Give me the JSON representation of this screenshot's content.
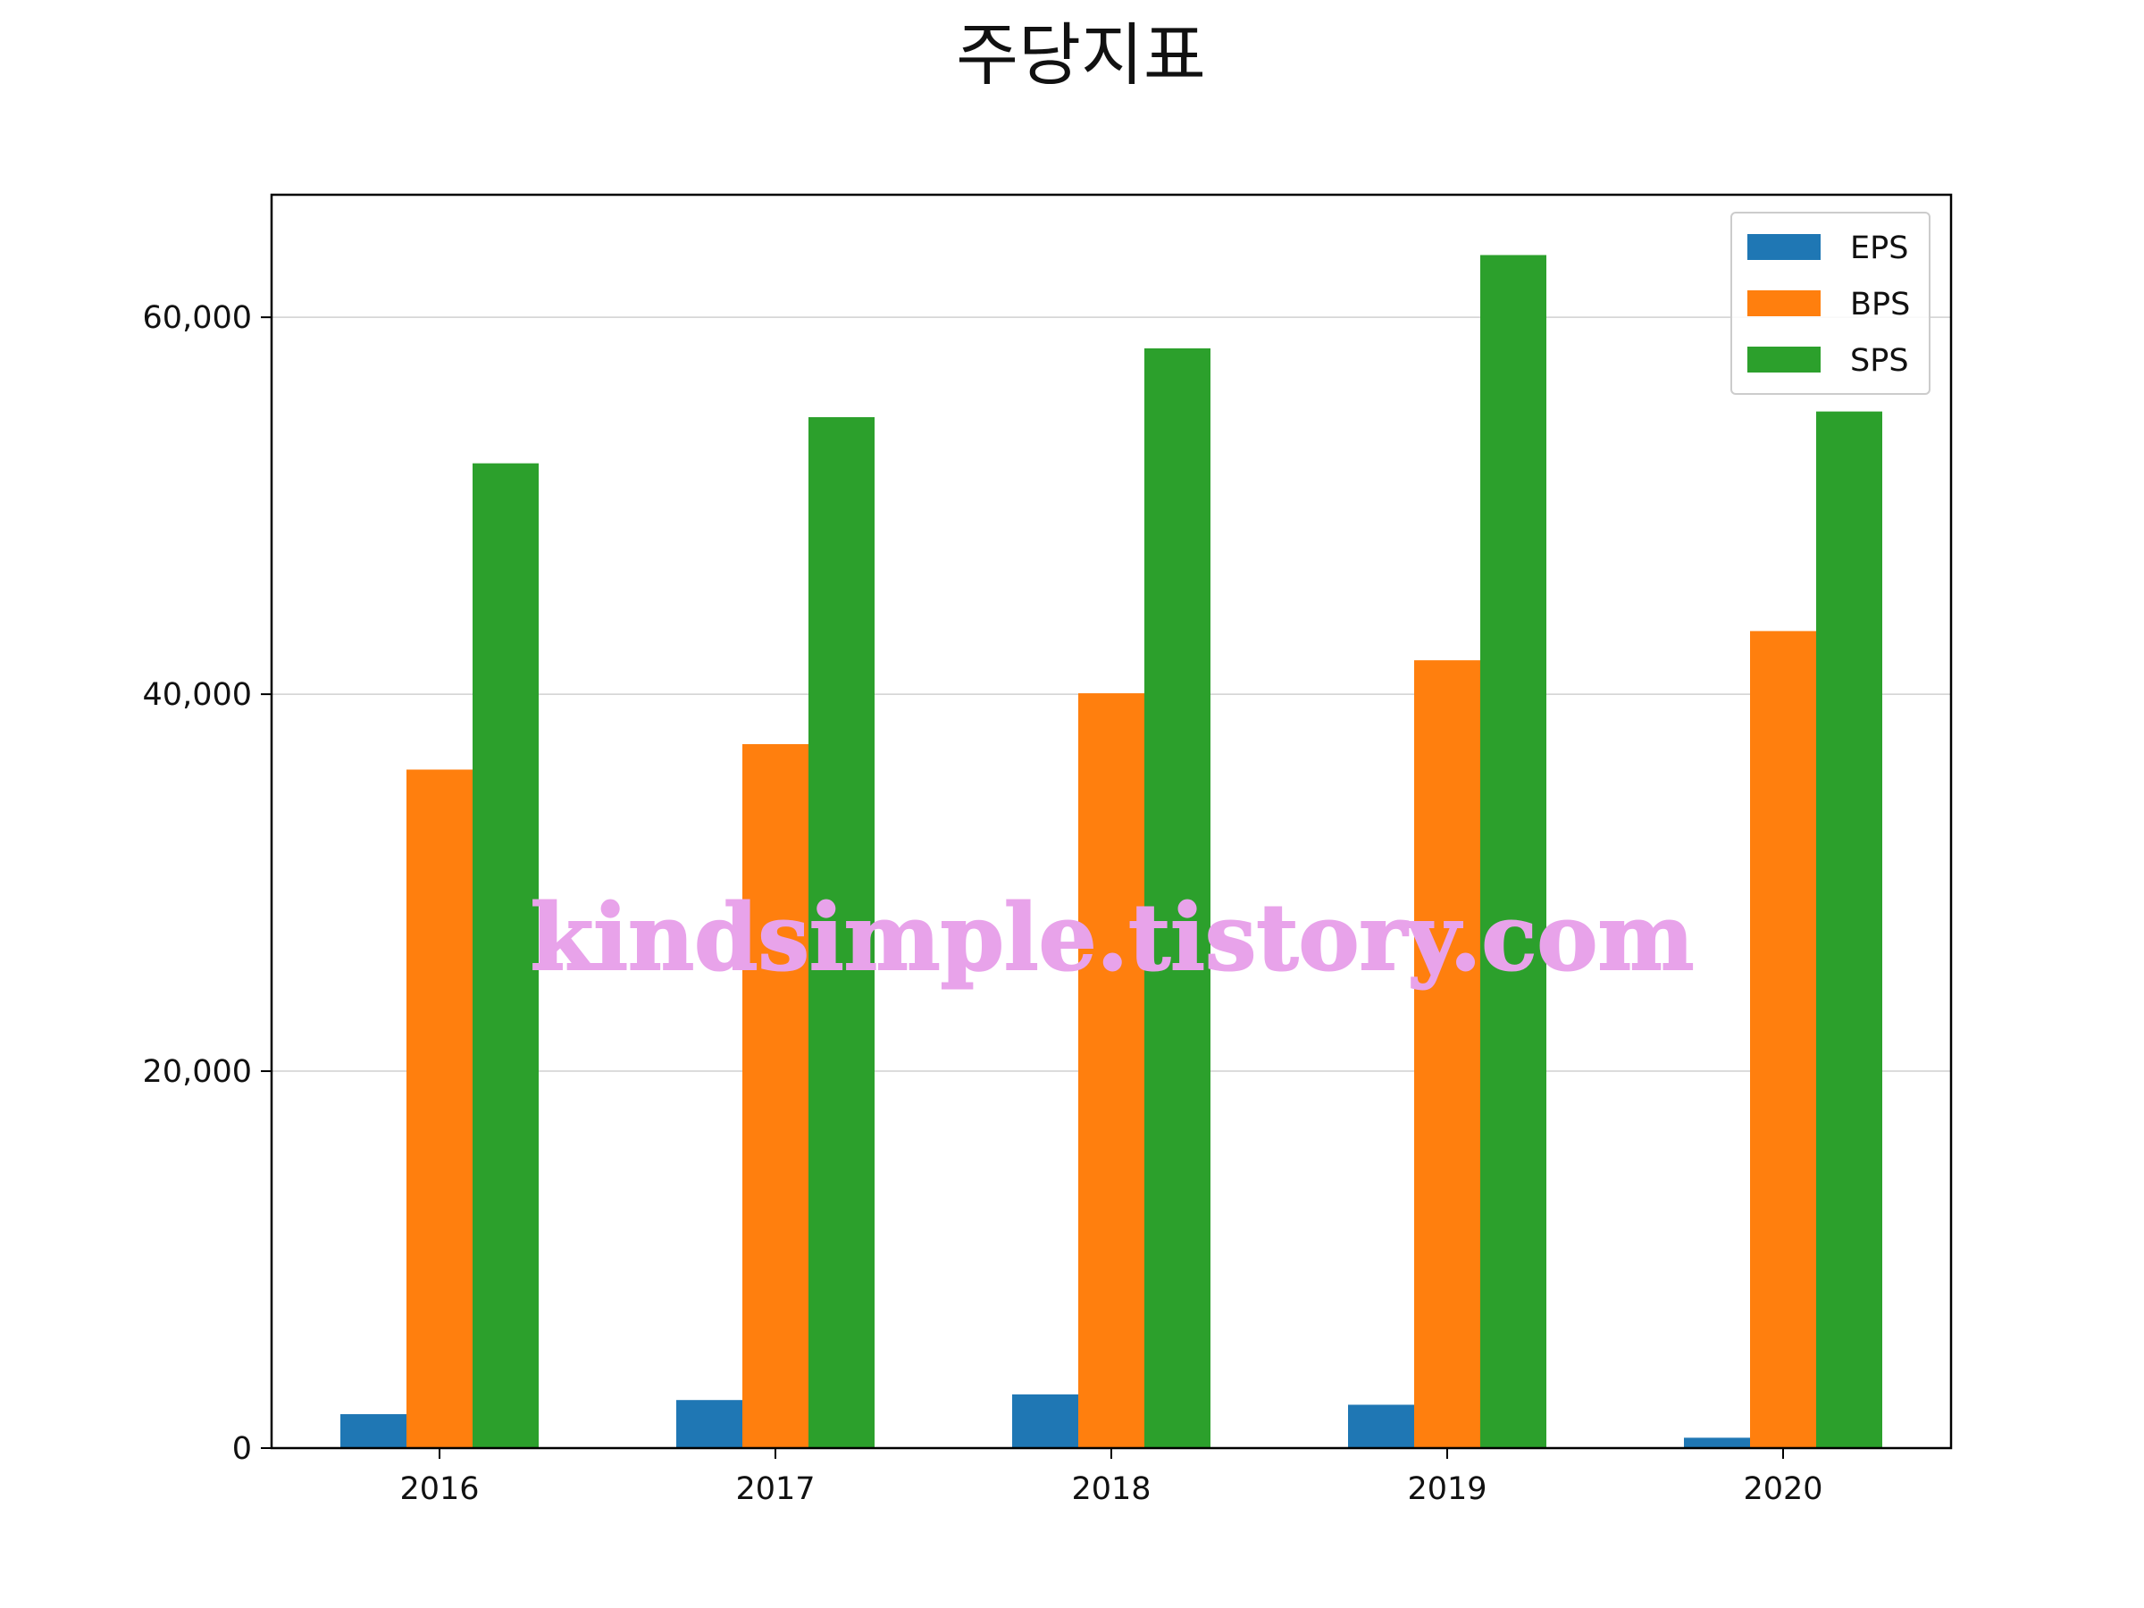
{
  "chart_data": {
    "type": "bar",
    "title": "주당지표",
    "categories": [
      "2016",
      "2017",
      "2018",
      "2019",
      "2020"
    ],
    "series": [
      {
        "name": "EPS",
        "color": "#1f77b4",
        "values": [
          1800,
          2550,
          2850,
          2300,
          550
        ]
      },
      {
        "name": "BPS",
        "color": "#ff7f0e",
        "values": [
          36000,
          37350,
          40050,
          41800,
          43350
        ]
      },
      {
        "name": "SPS",
        "color": "#2ca02c",
        "values": [
          52250,
          54700,
          58350,
          63300,
          55000
        ]
      }
    ],
    "yticks": [
      0,
      20000,
      40000,
      60000
    ],
    "ytick_labels": [
      "0",
      "20,000",
      "40,000",
      "60,000"
    ],
    "ylim": [
      0,
      66500
    ],
    "xlabel": "",
    "ylabel": "",
    "grid": "horizontal",
    "legend_position": "top-right"
  },
  "watermark": {
    "text": "kindsimple.tistory.com",
    "color": "#e8a3ea"
  }
}
